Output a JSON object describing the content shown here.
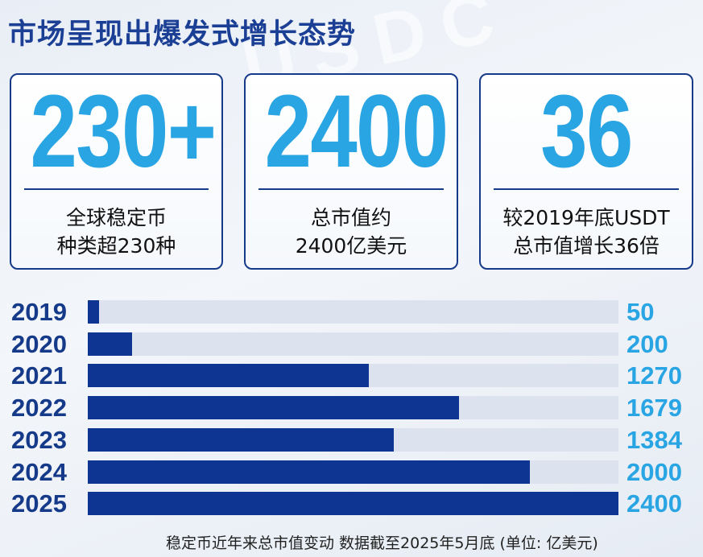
{
  "title": "市场呈现出爆发式增长态势",
  "stats": [
    {
      "number": "230+",
      "desc": "全球稳定币\n种类超230种"
    },
    {
      "number": "2400",
      "desc": "总市值约\n2400亿美元"
    },
    {
      "number": "36",
      "desc": "较2019年底USDT\n总市值增长36倍"
    }
  ],
  "colors": {
    "title": "#1b3f95",
    "accent": "#2aa5e3",
    "bar": "#0d3591",
    "track": "#dce3ef",
    "border": "#163a8a"
  },
  "chart_data": {
    "type": "bar",
    "orientation": "horizontal",
    "categories": [
      "2019",
      "2020",
      "2021",
      "2022",
      "2023",
      "2024",
      "2025"
    ],
    "values": [
      50,
      200,
      1270,
      1679,
      1384,
      2000,
      2400
    ],
    "value_labels": [
      "50",
      "200",
      "1270",
      "1679",
      "1384",
      "2000",
      "2400"
    ],
    "xlim": [
      0,
      2400
    ],
    "grid": false
  },
  "footnote": "稳定币近年来总市值变动  数据截至2025年5月底 (单位: 亿美元)"
}
